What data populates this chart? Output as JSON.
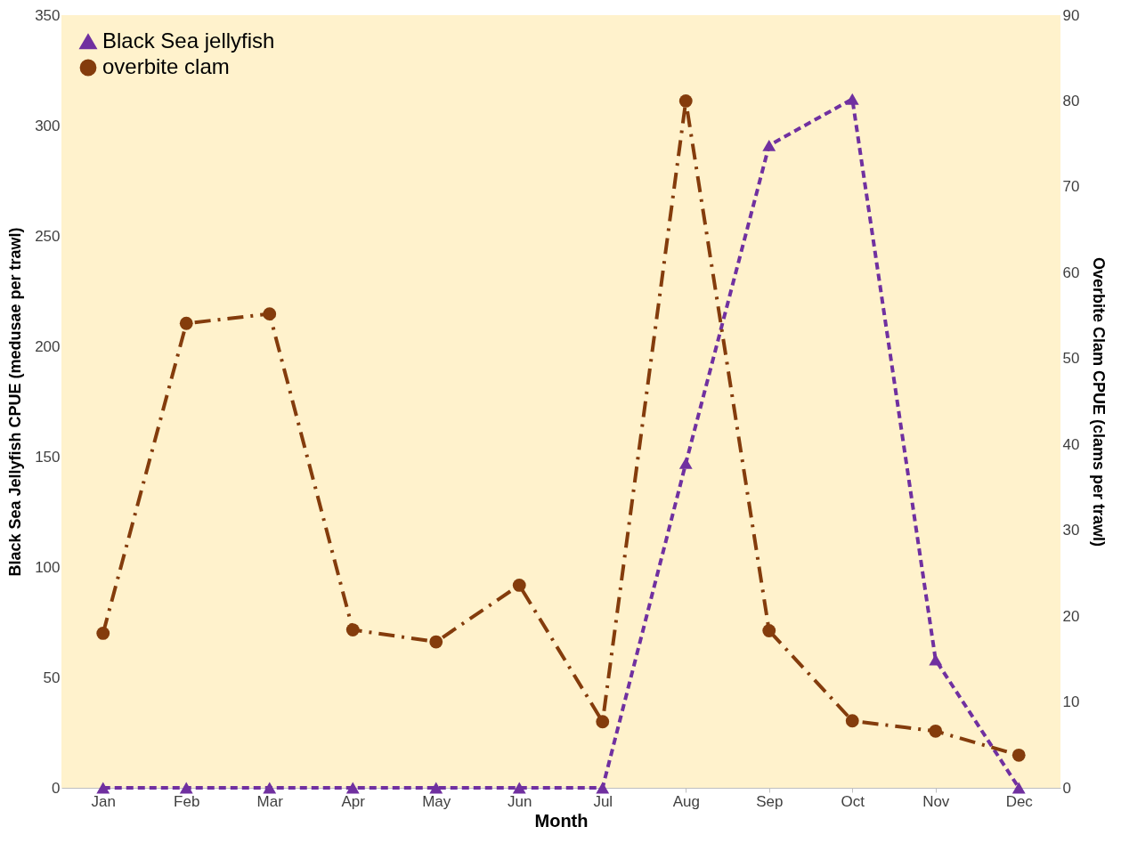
{
  "chart_data": {
    "type": "line",
    "xlabel": "Month",
    "ylabel": "Black Sea Jellyfish CPUE (medusae per trawl)",
    "y2label": "Overbite Clam CPUE (clams per trawl)",
    "categories": [
      "Jan",
      "Feb",
      "Mar",
      "Apr",
      "May",
      "Jun",
      "Jul",
      "Aug",
      "Sep",
      "Oct",
      "Nov",
      "Dec"
    ],
    "series": [
      {
        "name": "Black Sea jellyfish",
        "color": "#7030a0",
        "marker": "triangle",
        "line_style": "dashed",
        "values": [
          0,
          0,
          0,
          0,
          0,
          0,
          0,
          147,
          291,
          312,
          58,
          0
        ]
      },
      {
        "name": "overbite clam",
        "color": "#843c0c",
        "marker": "circle",
        "line_style": "dashdot",
        "axis": "y2",
        "values": [
          18.0,
          54.1,
          55.2,
          18.4,
          17.0,
          23.6,
          7.7,
          80,
          18.3,
          7.8,
          6.6,
          3.8
        ]
      }
    ],
    "ylim": [
      0,
      350
    ],
    "yticks": [
      0,
      50,
      100,
      150,
      200,
      250,
      300,
      350
    ],
    "y2lim": [
      0,
      90
    ],
    "y2ticks": [
      0,
      10,
      20,
      30,
      40,
      50,
      60,
      70,
      80,
      90
    ],
    "legend": "top left",
    "grid": false
  }
}
